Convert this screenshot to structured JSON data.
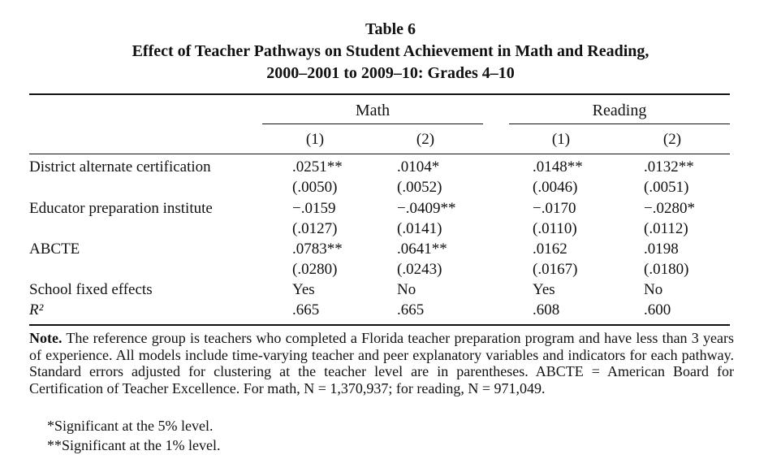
{
  "title": {
    "line1": "Table 6",
    "line2": "Effect of Teacher Pathways on Student Achievement in Math and Reading,",
    "line3": "2000–2001 to 2009–10: Grades 4–10"
  },
  "chart_data": {
    "type": "table",
    "groups": [
      "Math",
      "Reading"
    ],
    "columns": [
      "(1)",
      "(2)",
      "(1)",
      "(2)"
    ],
    "rows": [
      {
        "label": "District alternate certification",
        "values": [
          ".0251**",
          ".0104*",
          ".0148**",
          ".0132**"
        ]
      },
      {
        "label": "",
        "values": [
          "(.0050)",
          "(.0052)",
          "(.0046)",
          "(.0051)"
        ]
      },
      {
        "label": "Educator preparation institute",
        "values": [
          "−.0159",
          "−.0409**",
          "−.0170",
          "−.0280*"
        ]
      },
      {
        "label": "",
        "values": [
          "(.0127)",
          "(.0141)",
          "(.0110)",
          "(.0112)"
        ]
      },
      {
        "label": "ABCTE",
        "values": [
          ".0783**",
          ".0641**",
          ".0162",
          ".0198"
        ]
      },
      {
        "label": "",
        "values": [
          "(.0280)",
          "(.0243)",
          "(.0167)",
          "(.0180)"
        ]
      },
      {
        "label": "School fixed effects",
        "values": [
          "Yes",
          "No",
          "Yes",
          "No"
        ]
      },
      {
        "label": "R²",
        "values": [
          ".665",
          ".665",
          ".608",
          ".600"
        ]
      }
    ]
  },
  "note": {
    "label": "Note.",
    "text": " The reference group is teachers who completed a Florida teacher preparation program and have less than 3 years of experience. All models include time-varying teacher and peer explanatory variables and indicators for each pathway. Standard errors adjusted for clustering at the teacher level are in parentheses. ABCTE = American Board for Certification of Teacher Excellence. For math, N = 1,370,937; for reading, N = 971,049.",
    "sig5": "*Significant at the 5% level.",
    "sig1": "**Significant at the 1% level."
  }
}
